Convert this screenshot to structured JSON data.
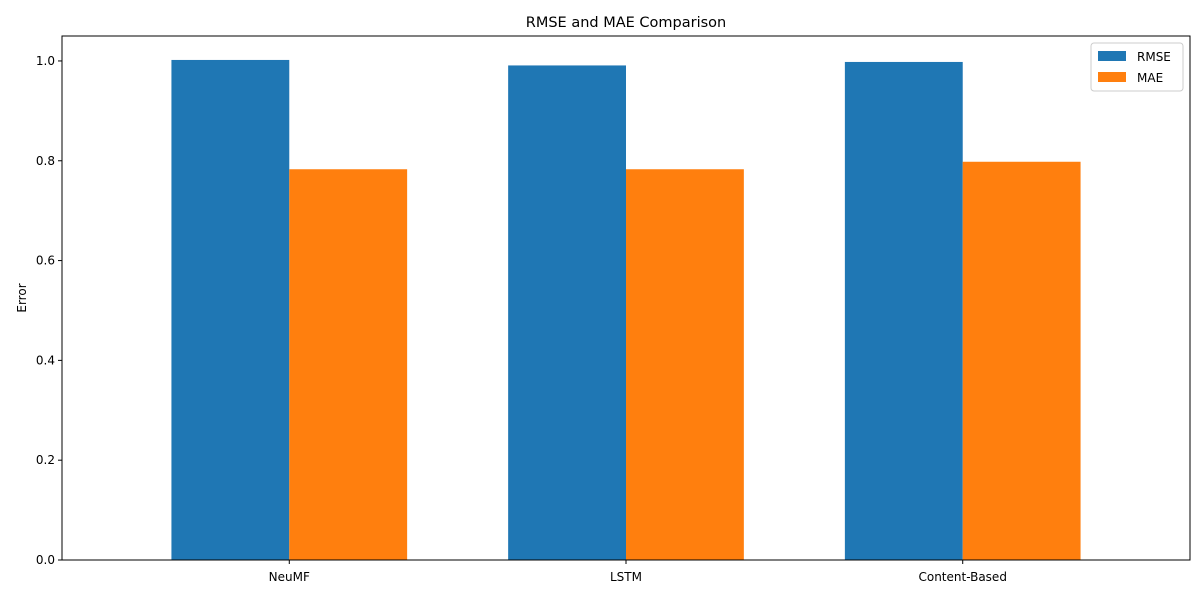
{
  "chart_data": {
    "type": "bar",
    "title": "RMSE and MAE Comparison",
    "xlabel": "",
    "ylabel": "Error",
    "categories": [
      "NeuMF",
      "LSTM",
      "Content-Based"
    ],
    "series": [
      {
        "name": "RMSE",
        "color": "#1f77b4",
        "values": [
          1.002,
          0.991,
          0.998
        ]
      },
      {
        "name": "MAE",
        "color": "#ff7f0e",
        "values": [
          0.783,
          0.783,
          0.798
        ]
      }
    ],
    "ylim": [
      0,
      1.05
    ],
    "yticks": [
      0.0,
      0.2,
      0.4,
      0.6,
      0.8,
      1.0
    ],
    "ytick_labels": [
      "0.0",
      "0.2",
      "0.4",
      "0.6",
      "0.8",
      "1.0"
    ],
    "grid": false,
    "legend_position": "top-right"
  }
}
